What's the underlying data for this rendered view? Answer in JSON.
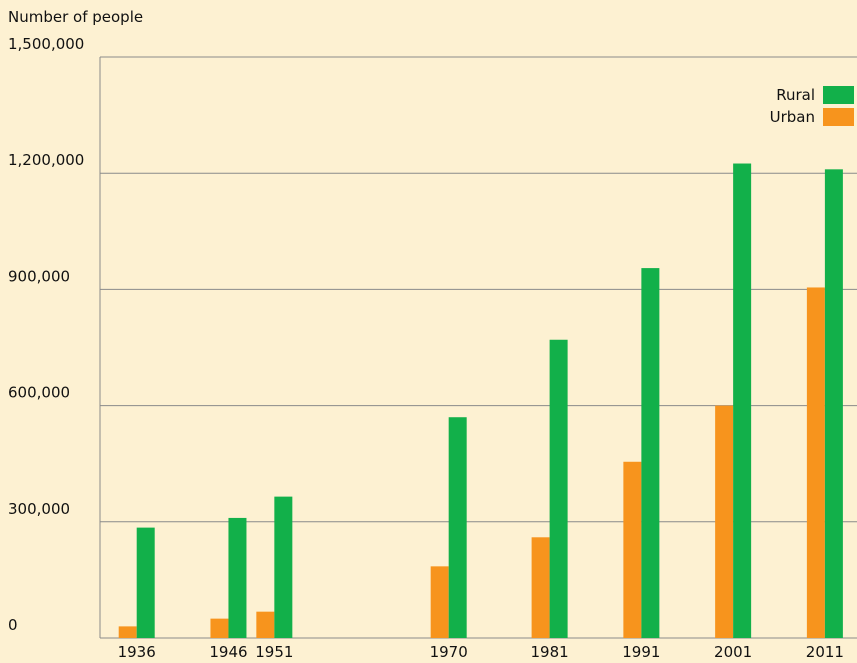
{
  "chart_data": {
    "type": "bar",
    "y_label": "Number of people",
    "x": [
      1936,
      1946,
      1951,
      1970,
      1981,
      1991,
      2001,
      2011
    ],
    "xlim": [
      1932,
      2014.5
    ],
    "series": [
      {
        "name": "Urban",
        "color": "#f7941d",
        "values": [
          30000,
          50000,
          68000,
          185000,
          260000,
          455000,
          600000,
          905000
        ]
      },
      {
        "name": "Rural",
        "color": "#12b04a",
        "values": [
          285000,
          310000,
          365000,
          570000,
          770000,
          955000,
          1225000,
          1210000
        ]
      }
    ],
    "ylim": [
      0,
      1500000
    ],
    "yticks": [
      0,
      {
        "value": 300000,
        "label": "300,000"
      },
      {
        "value": 600000,
        "label": "600,000"
      },
      {
        "value": 900000,
        "label": "900,000"
      },
      {
        "value": 1200000,
        "label": "1,200,000"
      },
      {
        "value": 1500000,
        "label": "1,500,000"
      }
    ],
    "grid": true,
    "legend": "top-right"
  }
}
